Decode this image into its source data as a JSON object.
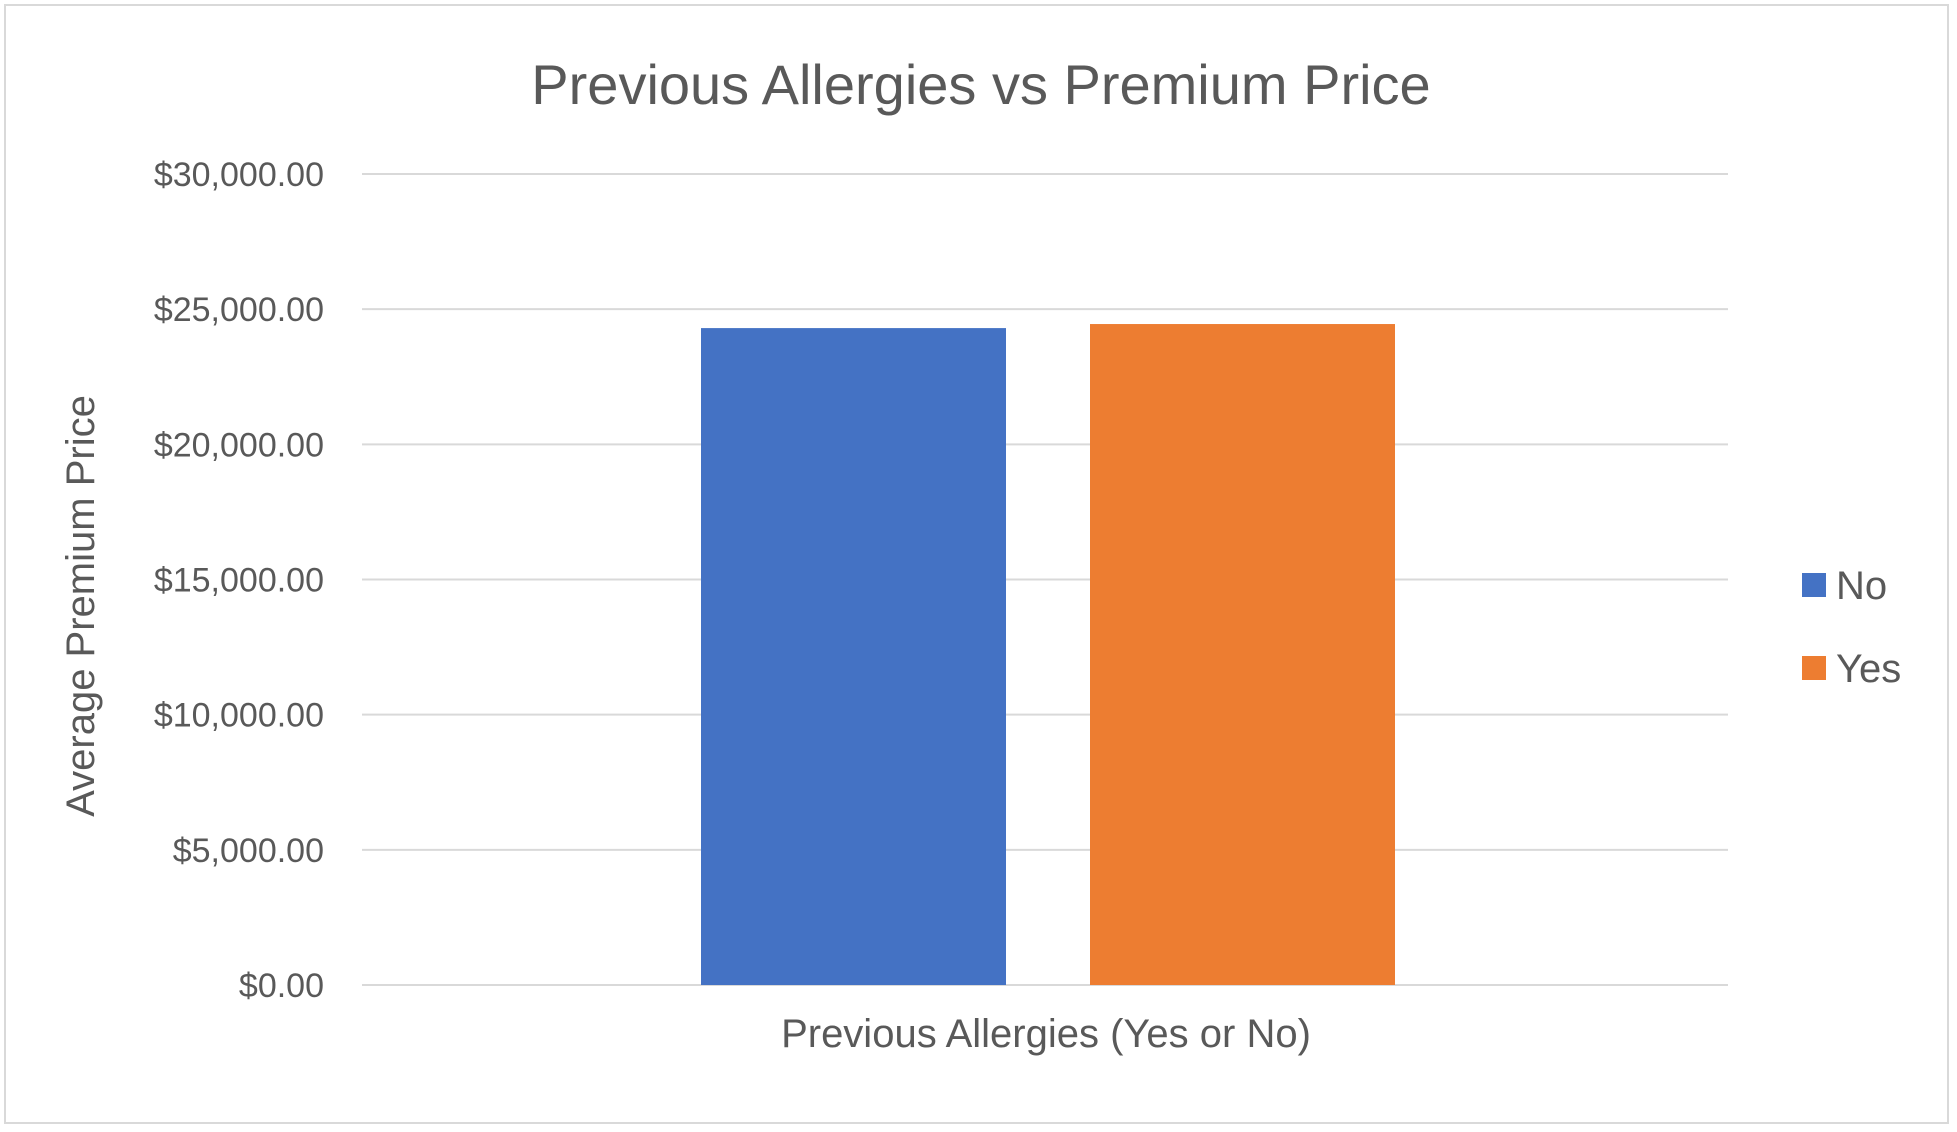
{
  "chart_data": {
    "type": "bar",
    "title": "Previous Allergies vs Premium Price",
    "xlabel": "Previous Allergies (Yes or No)",
    "ylabel": "Average Premium Price",
    "ylim": [
      0,
      30000
    ],
    "yticks": [
      "$0.00",
      "$5,000.00",
      "$10,000.00",
      "$15,000.00",
      "$20,000.00",
      "$25,000.00",
      "$30,000.00"
    ],
    "grid": true,
    "legend_position": "right",
    "series": [
      {
        "name": "No",
        "values": [
          24300
        ],
        "color": "#4472c4"
      },
      {
        "name": "Yes",
        "values": [
          24450
        ],
        "color": "#ed7d31"
      }
    ]
  }
}
